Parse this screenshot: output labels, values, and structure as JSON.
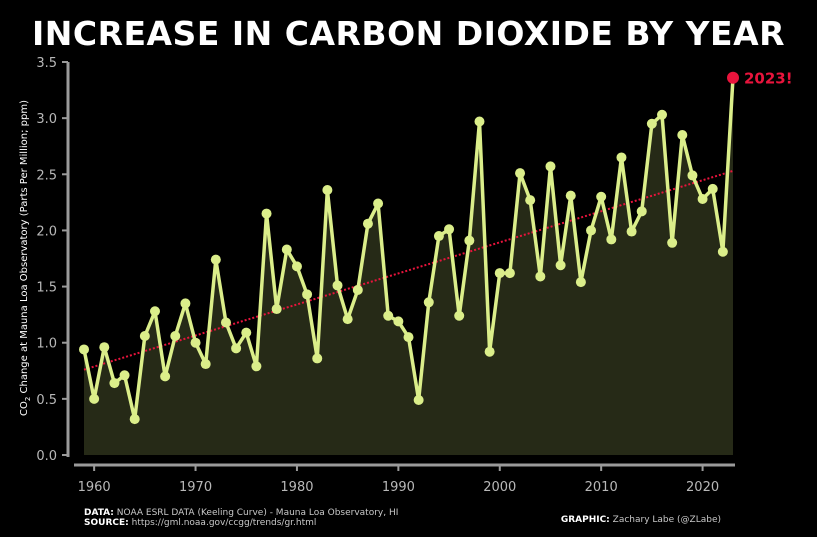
{
  "chart_data": {
    "type": "line",
    "title": "INCREASE IN CARBON DIOXIDE BY YEAR",
    "ylabel_parts": [
      "CO",
      "2",
      " Change at Mauna Loa Observatory (Parts Per Million; ppm)"
    ],
    "xlabel": "",
    "ylim": [
      0,
      3.5
    ],
    "yticks": [
      "0.0",
      "0.5",
      "1.0",
      "1.5",
      "2.0",
      "2.5",
      "3.0",
      "3.5"
    ],
    "xticks": [
      "1960",
      "1970",
      "1980",
      "1990",
      "2000",
      "2010",
      "2020"
    ],
    "x": [
      1959,
      1960,
      1961,
      1962,
      1963,
      1964,
      1965,
      1966,
      1967,
      1968,
      1969,
      1970,
      1971,
      1972,
      1973,
      1974,
      1975,
      1976,
      1977,
      1978,
      1979,
      1980,
      1981,
      1982,
      1983,
      1984,
      1985,
      1986,
      1987,
      1988,
      1989,
      1990,
      1991,
      1992,
      1993,
      1994,
      1995,
      1996,
      1997,
      1998,
      1999,
      2000,
      2001,
      2002,
      2003,
      2004,
      2005,
      2006,
      2007,
      2008,
      2009,
      2010,
      2011,
      2012,
      2013,
      2014,
      2015,
      2016,
      2017,
      2018,
      2019,
      2020,
      2021,
      2022,
      2023
    ],
    "values": [
      0.94,
      0.5,
      0.96,
      0.64,
      0.71,
      0.32,
      1.06,
      1.28,
      0.7,
      1.06,
      1.35,
      1.0,
      0.81,
      1.74,
      1.18,
      0.95,
      1.09,
      0.79,
      2.15,
      1.3,
      1.83,
      1.68,
      1.43,
      0.86,
      2.36,
      1.51,
      1.21,
      1.47,
      2.06,
      2.24,
      1.24,
      1.19,
      1.05,
      0.49,
      1.36,
      1.95,
      2.01,
      1.24,
      1.91,
      2.97,
      0.92,
      1.62,
      1.62,
      2.51,
      2.27,
      1.59,
      2.57,
      1.69,
      2.31,
      1.54,
      2.0,
      2.3,
      1.92,
      2.65,
      1.99,
      2.17,
      2.95,
      3.03,
      1.89,
      2.85,
      2.49,
      2.28,
      2.37,
      1.81,
      3.36
    ],
    "trend": {
      "start": [
        1959,
        0.76
      ],
      "end": [
        2023,
        2.53
      ]
    },
    "annotation": {
      "x": 2023,
      "y": 3.36,
      "text": "2023!"
    },
    "colors": {
      "line": "#dbee8a",
      "fill": "#262a17",
      "trend": "#e8143c",
      "highlight": "#e8143c",
      "axis": "#9a9a9a",
      "tick_label": "#b8b8b8"
    }
  },
  "footer": {
    "data_label": "DATA:",
    "data_text": "NOAA ESRL DATA (Keeling Curve) - Mauna Loa Observatory, HI",
    "source_label": "SOURCE:",
    "source_text": "https://gml.noaa.gov/ccgg/trends/gr.html",
    "graphic_label": "GRAPHIC:",
    "graphic_text": "Zachary Labe (@ZLabe)"
  }
}
